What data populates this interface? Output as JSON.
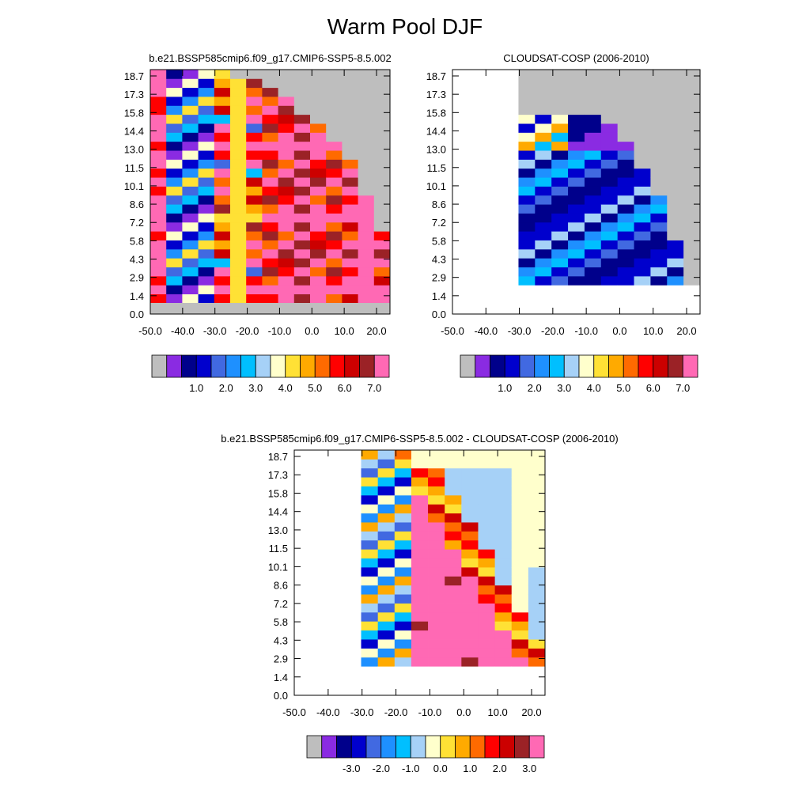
{
  "title": "Warm Pool DJF",
  "colors": {
    "palette13": [
      "#bebebe",
      "#8a2be2",
      "#00008b",
      "#0000cd",
      "#4169e1",
      "#1e90ff",
      "#00bfff",
      "#a6d1f7",
      "#ffffcc",
      "#ffe135",
      "#ffaa00",
      "#ff6a00",
      "#ff0000",
      "#cc0000",
      "#9b2226",
      "#ff69b4"
    ],
    "absolute": [
      "#bebebe",
      "#8a2be2",
      "#00008b",
      "#0000cd",
      "#4169e1",
      "#1e90ff",
      "#00bfff",
      "#a6d1f7",
      "#ffffcc",
      "#ffe135",
      "#ffaa00",
      "#ff6a00",
      "#ff0000",
      "#cc0000",
      "#9b2226",
      "#ff69b4"
    ],
    "difference": [
      "#bebebe",
      "#8a2be2",
      "#00008b",
      "#0000cd",
      "#4169e1",
      "#1e90ff",
      "#00bfff",
      "#a6d1f7",
      "#ffffcc",
      "#ffe135",
      "#ffaa00",
      "#ff6a00",
      "#ff0000",
      "#cc0000",
      "#9b2226",
      "#ff69b4"
    ]
  },
  "chart_data": [
    {
      "type": "heatmap",
      "title": "b.e21.BSSP585cmip6.f09_g17.CMIP6-SSP5-8.5.002",
      "xticks": [
        "-50.0",
        "-40.0",
        "-30.0",
        "-20.0",
        "-10.0",
        "0.0",
        "10.0",
        "20.0"
      ],
      "yticks": [
        "0.0",
        "1.4",
        "2.9",
        "4.3",
        "5.8",
        "7.2",
        "8.6",
        "10.1",
        "11.5",
        "13.0",
        "14.4",
        "15.8",
        "17.3",
        "18.7"
      ],
      "xlim": [
        -50,
        25
      ],
      "ylim": [
        0,
        19.3
      ],
      "colorbar_labels": [
        "1.0",
        "2.0",
        "3.0",
        "4.0",
        "5.0",
        "6.0",
        "7.0"
      ],
      "colorbar_levels": 16,
      "background": "gray"
    },
    {
      "type": "heatmap",
      "title": "CLOUDSAT-COSP (2006-2010)",
      "xticks": [
        "-50.0",
        "-40.0",
        "-30.0",
        "-20.0",
        "-10.0",
        "0.0",
        "10.0",
        "20.0"
      ],
      "yticks": [
        "0.0",
        "1.4",
        "2.9",
        "4.3",
        "5.8",
        "7.2",
        "8.6",
        "10.1",
        "11.5",
        "13.0",
        "14.4",
        "15.8",
        "17.3",
        "18.7"
      ],
      "xlim": [
        -50,
        25
      ],
      "ylim": [
        0,
        19.3
      ],
      "colorbar_labels": [
        "1.0",
        "2.0",
        "3.0",
        "4.0",
        "5.0",
        "6.0",
        "7.0"
      ],
      "colorbar_levels": 16,
      "background": "gray"
    },
    {
      "type": "heatmap",
      "title": "b.e21.BSSP585cmip6.f09_g17.CMIP6-SSP5-8.5.002 - CLOUDSAT-COSP (2006-2010)",
      "xticks": [
        "-50.0",
        "-40.0",
        "-30.0",
        "-20.0",
        "-10.0",
        "0.0",
        "10.0",
        "20.0"
      ],
      "yticks": [
        "0.0",
        "1.4",
        "2.9",
        "4.3",
        "5.8",
        "7.2",
        "8.6",
        "10.1",
        "11.5",
        "13.0",
        "14.4",
        "15.8",
        "17.3",
        "18.7"
      ],
      "xlim": [
        -50,
        25
      ],
      "ylim": [
        0,
        19.3
      ],
      "colorbar_labels": [
        "-3.0",
        "-2.0",
        "-1.0",
        "0.0",
        "1.0",
        "2.0",
        "3.0"
      ],
      "colorbar_levels": 16,
      "background": "lightyellow"
    }
  ]
}
